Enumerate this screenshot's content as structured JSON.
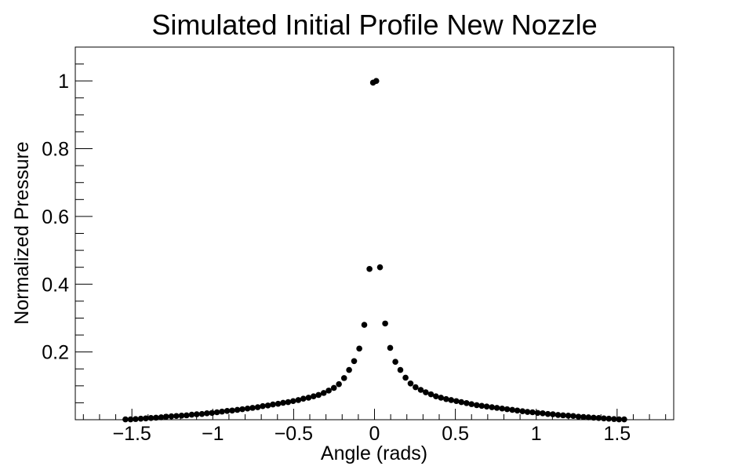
{
  "chart_data": {
    "type": "scatter",
    "title": "Simulated Initial Profile New Nozzle",
    "xlabel": "Angle (rads)",
    "ylabel": "Normalized Pressure",
    "xlim": [
      -1.85,
      1.85
    ],
    "ylim": [
      0.0,
      1.1
    ],
    "x_ticks": [
      -1.5,
      -1.0,
      -0.5,
      0.0,
      0.5,
      1.0,
      1.5
    ],
    "x_tick_labels": [
      "−1.5",
      "−1",
      "−0.5",
      "0",
      "0.5",
      "1",
      "1.5"
    ],
    "y_ticks": [
      0.2,
      0.4,
      0.6,
      0.8,
      1.0
    ],
    "y_tick_labels": [
      "0.2",
      "0.4",
      "0.6",
      "0.8",
      "1"
    ],
    "marker_color": "#000000",
    "grid": false,
    "series": [
      {
        "x": [
          -1.54,
          -1.508,
          -1.477,
          -1.445,
          -1.414,
          -1.382,
          -1.351,
          -1.319,
          -1.288,
          -1.256,
          -1.225,
          -1.193,
          -1.162,
          -1.13,
          -1.099,
          -1.067,
          -1.036,
          -1.005,
          -0.974,
          -0.943,
          -0.911,
          -0.88,
          -0.848,
          -0.817,
          -0.785,
          -0.754,
          -0.722,
          -0.691,
          -0.659,
          -0.628,
          -0.596,
          -0.565,
          -0.534,
          -0.503,
          -0.471,
          -0.44,
          -0.408,
          -0.377,
          -0.346,
          -0.314,
          -0.283,
          -0.251,
          -0.22,
          -0.188,
          -0.157,
          -0.126,
          -0.094,
          -0.063,
          -0.031,
          -0.009,
          0.011,
          0.034,
          0.066,
          0.097,
          0.129,
          0.16,
          0.192,
          0.223,
          0.254,
          0.286,
          0.317,
          0.349,
          0.38,
          0.411,
          0.443,
          0.474,
          0.506,
          0.537,
          0.569,
          0.6,
          0.632,
          0.663,
          0.694,
          0.726,
          0.757,
          0.789,
          0.82,
          0.852,
          0.883,
          0.915,
          0.946,
          0.977,
          1.009,
          1.04,
          1.072,
          1.103,
          1.135,
          1.166,
          1.198,
          1.229,
          1.261,
          1.292,
          1.323,
          1.355,
          1.386,
          1.418,
          1.449,
          1.481,
          1.512,
          1.544
        ],
        "y": [
          0.001,
          0.001,
          0.002,
          0.003,
          0.004,
          0.005,
          0.006,
          0.007,
          0.009,
          0.01,
          0.011,
          0.012,
          0.013,
          0.015,
          0.016,
          0.017,
          0.019,
          0.02,
          0.022,
          0.024,
          0.026,
          0.027,
          0.029,
          0.031,
          0.033,
          0.035,
          0.037,
          0.04,
          0.042,
          0.045,
          0.047,
          0.05,
          0.052,
          0.055,
          0.058,
          0.062,
          0.065,
          0.069,
          0.073,
          0.079,
          0.086,
          0.094,
          0.105,
          0.123,
          0.147,
          0.173,
          0.21,
          0.28,
          0.445,
          0.995,
          1.0,
          0.45,
          0.284,
          0.212,
          0.171,
          0.147,
          0.124,
          0.107,
          0.096,
          0.088,
          0.081,
          0.075,
          0.069,
          0.065,
          0.061,
          0.058,
          0.055,
          0.052,
          0.049,
          0.046,
          0.043,
          0.041,
          0.039,
          0.037,
          0.035,
          0.033,
          0.031,
          0.029,
          0.027,
          0.025,
          0.023,
          0.022,
          0.02,
          0.019,
          0.017,
          0.016,
          0.014,
          0.013,
          0.012,
          0.011,
          0.009,
          0.008,
          0.007,
          0.006,
          0.005,
          0.004,
          0.003,
          0.002,
          0.001,
          0.001
        ]
      }
    ]
  }
}
